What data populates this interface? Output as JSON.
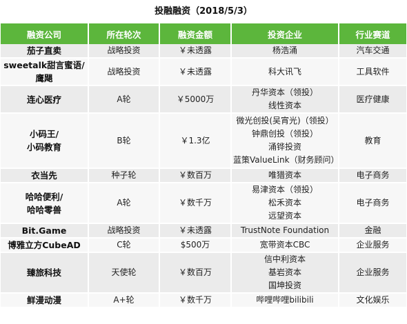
{
  "title": "投融融资（2018/5/3）",
  "headers": [
    "融资公司",
    "所在轮次",
    "融资金额",
    "投资企业",
    "行业赛道"
  ],
  "rows": [
    {
      "company": [
        "茄子直卖"
      ],
      "round": "战略投资",
      "amount": "￥未透露",
      "investors": [
        "杨浩涌"
      ],
      "sector": "汽车交通"
    },
    {
      "company": [
        "sweetalk甜言蜜语/",
        "鹰飓"
      ],
      "round": "战略投资",
      "amount": "￥未透露",
      "investors": [
        "科大讯飞"
      ],
      "sector": "工具软件"
    },
    {
      "company": [
        "连心医疗"
      ],
      "round": "A轮",
      "amount": "￥5000万",
      "investors": [
        "丹华资本（领投）",
        "线性资本"
      ],
      "sector": "医疗健康"
    },
    {
      "company": [
        "小码王/",
        "小码教育"
      ],
      "round": "B轮",
      "amount": "￥1.3亿",
      "investors": [
        "微光创投(吴宵光)（领投）",
        "钟鼎创投（领投）",
        "涌铧投资",
        "蓝策ValueLink（财务顾问）"
      ],
      "sector": "教育"
    },
    {
      "company": [
        "衣当先"
      ],
      "round": "种子轮",
      "amount": "￥数百万",
      "investors": [
        "唯猎资本"
      ],
      "sector": "电子商务"
    },
    {
      "company": [
        "哈哈便利/",
        "哈哈零兽"
      ],
      "round": "A轮",
      "amount": "￥数千万",
      "investors": [
        "易津资本（领投）",
        "松禾资本",
        "远望资本"
      ],
      "sector": "电子商务"
    },
    {
      "company": [
        "Bit.Game"
      ],
      "round": "战略投资",
      "amount": "￥未透露",
      "investors": [
        "TrustNote Foundation"
      ],
      "sector": "金融"
    },
    {
      "company": [
        "博雅立方CubeAD"
      ],
      "round": "C轮",
      "amount": "$500万",
      "investors": [
        "宽带资本CBC"
      ],
      "sector": "企业服务"
    },
    {
      "company": [
        "臻旅科技"
      ],
      "round": "天使轮",
      "amount": "￥数百万",
      "investors": [
        "信中利资本",
        "基岩资本",
        "国坤投资"
      ],
      "sector": "企业服务"
    },
    {
      "company": [
        "鲜漫动漫"
      ],
      "round": "A+轮",
      "amount": "￥数千万",
      "investors": [
        "哔哩哔哩bilibili"
      ],
      "sector": "文化娱乐"
    }
  ]
}
